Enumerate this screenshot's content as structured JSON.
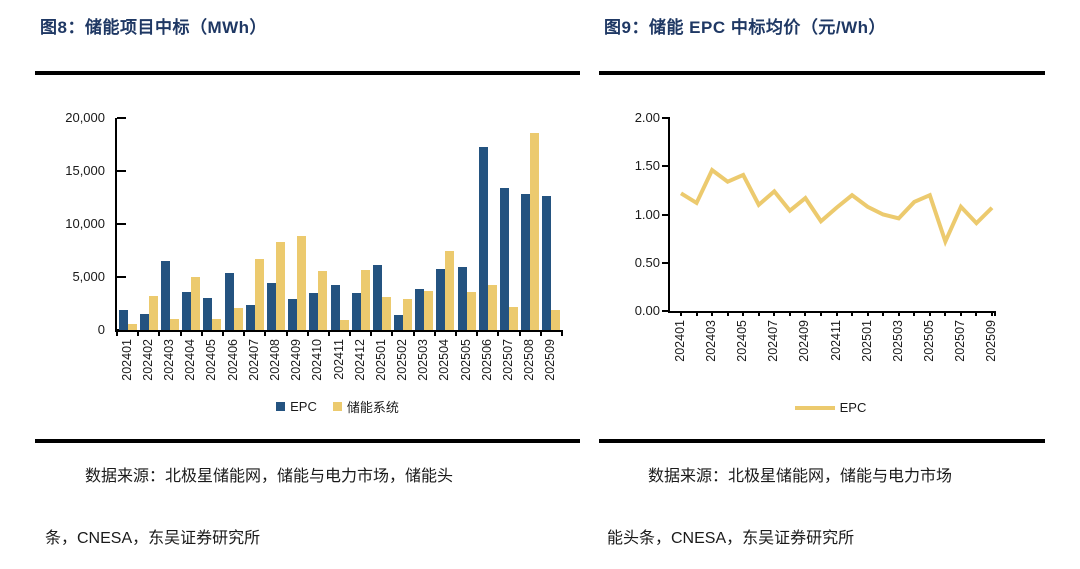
{
  "figures": [
    {
      "title": "图8：储能项目中标（MWh）",
      "source_line1": "数据来源：北极星储能网，储能与电力市场，储能头",
      "source_line2": "条，CNESA，东吴证券研究所",
      "chart_data": {
        "type": "bar",
        "title": "储能项目中标（MWh）",
        "categories": [
          "202401",
          "202402",
          "202403",
          "202404",
          "202405",
          "202406",
          "202407",
          "202408",
          "202409",
          "202410",
          "202411",
          "202412",
          "202501",
          "202502",
          "202503",
          "202504",
          "202505",
          "202506",
          "202507",
          "202508",
          "202509"
        ],
        "series": [
          {
            "name": "EPC",
            "color": "#245380",
            "values": [
              1900,
              1500,
              6500,
              3600,
              3000,
              5400,
              2400,
              4400,
              2900,
              3500,
              4200,
              3500,
              6100,
              1400,
              3900,
              5800,
              5900,
              17300,
              13400,
              12800,
              12600
            ]
          },
          {
            "name": "储能系统",
            "color": "#ECCA6E",
            "values": [
              600,
              3200,
              1000,
              5000,
              1000,
              2100,
              6700,
              8300,
              8900,
              5600,
              900,
              5700,
              3100,
              2900,
              3700,
              7500,
              3600,
              4200,
              2200,
              18600,
              1900
            ]
          }
        ],
        "ylim": [
          0,
          20000
        ],
        "yticks": [
          {
            "v": 0,
            "label": "0"
          },
          {
            "v": 5000,
            "label": "5,000"
          },
          {
            "v": 10000,
            "label": "10,000"
          },
          {
            "v": 15000,
            "label": "15,000"
          },
          {
            "v": 20000,
            "label": "20,000"
          }
        ],
        "xtick_label_step": 1,
        "grid": false,
        "legend_position": "bottom"
      }
    },
    {
      "title": "图9：储能 EPC 中标均价（元/Wh）",
      "source_line1": "数据来源：北极星储能网，储能与电力市场",
      "source_line2": "能头条，CNESA，东吴证券研究所",
      "chart_data": {
        "type": "line",
        "title": "储能 EPC 中标均价（元/Wh）",
        "categories": [
          "202401",
          "202402",
          "202403",
          "202404",
          "202405",
          "202406",
          "202407",
          "202408",
          "202409",
          "202410",
          "202411",
          "202412",
          "202501",
          "202502",
          "202503",
          "202504",
          "202505",
          "202506",
          "202507",
          "202508",
          "202509"
        ],
        "series": [
          {
            "name": "EPC",
            "color": "#ECCA6E",
            "values": [
              1.22,
              1.12,
              1.46,
              1.34,
              1.41,
              1.1,
              1.24,
              1.04,
              1.17,
              0.93,
              1.07,
              1.2,
              1.08,
              1.0,
              0.96,
              1.13,
              1.2,
              0.72,
              1.08,
              0.91,
              1.07
            ]
          }
        ],
        "ylim": [
          0,
          2
        ],
        "yticks": [
          {
            "v": 0,
            "label": "0.00"
          },
          {
            "v": 0.5,
            "label": "0.50"
          },
          {
            "v": 1,
            "label": "1.00"
          },
          {
            "v": 1.5,
            "label": "1.50"
          },
          {
            "v": 2,
            "label": "2.00"
          }
        ],
        "xtick_label_step": 2,
        "grid": false,
        "legend_position": "bottom"
      }
    }
  ]
}
